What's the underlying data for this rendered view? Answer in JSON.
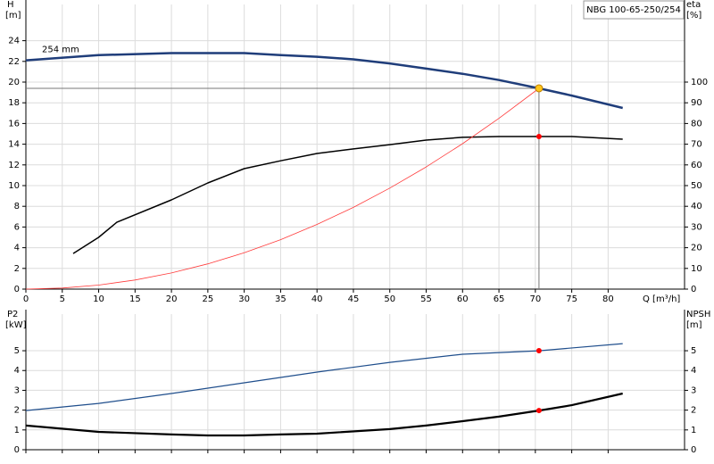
{
  "chart_data": [
    {
      "type": "line",
      "title": "NBG 100-65-250/254",
      "xlabel": "Q [m³/h]",
      "ylabel": "H",
      "yunit": "[m]",
      "y2label": "eta",
      "y2unit": "[%]",
      "xlim": [
        0,
        90.5
      ],
      "xticks": [
        0,
        5,
        10,
        15,
        20,
        25,
        30,
        35,
        40,
        45,
        50,
        55,
        60,
        65,
        70,
        75,
        80
      ],
      "ylim": [
        0,
        27.5
      ],
      "yticks": [
        0,
        2,
        4,
        6,
        8,
        10,
        12,
        14,
        16,
        18,
        20,
        22,
        24
      ],
      "y2lim": [
        0,
        137.5
      ],
      "y2ticks": [
        0,
        10,
        20,
        30,
        40,
        50,
        60,
        70,
        80,
        90,
        100
      ],
      "grid": true,
      "series": [
        {
          "name": "254 mm",
          "color": "#1f3d7a",
          "line_width": 2.5,
          "x": [
            0,
            10,
            20,
            25,
            30,
            35,
            40,
            45,
            50,
            55,
            60,
            65,
            70.5,
            75,
            82
          ],
          "values": [
            22.1,
            22.6,
            22.8,
            22.8,
            22.8,
            22.6,
            22.45,
            22.2,
            21.8,
            21.3,
            20.8,
            20.2,
            19.4,
            18.7,
            17.5
          ]
        },
        {
          "color": "#000000",
          "line_width": 1.5,
          "axis": "y2",
          "x": [
            6.5,
            10,
            12.5,
            20,
            25,
            30,
            35,
            40,
            45,
            50,
            55,
            60,
            65,
            70.5,
            75,
            82
          ],
          "values": [
            17.2,
            25,
            32.3,
            43.1,
            51.3,
            58.2,
            62,
            65.5,
            67.7,
            69.8,
            72,
            73.3,
            73.7,
            73.7,
            73.7,
            72.4
          ]
        },
        {
          "color": "#ff3b3b",
          "line_width": 0.8,
          "x": [
            0,
            5,
            10,
            15,
            20,
            25,
            30,
            35,
            40,
            45,
            50,
            55,
            60,
            65,
            70.5
          ],
          "values": [
            0,
            0.1,
            0.39,
            0.88,
            1.56,
            2.44,
            3.51,
            4.78,
            6.25,
            7.9,
            9.76,
            11.8,
            14.05,
            16.5,
            19.4
          ]
        }
      ],
      "markers": [
        {
          "x": 70.5,
          "y": 19.4,
          "color": "#ffc61a"
        },
        {
          "x": 70.5,
          "y": 73.7,
          "axis": "y2",
          "color": "#ff0000"
        }
      ]
    },
    {
      "type": "line",
      "ylabel": "P2",
      "yunit": "[kW]",
      "y2label": "NPSH",
      "y2unit": "[m]",
      "xlim": [
        0,
        90.5
      ],
      "xticks": [
        0,
        5,
        10,
        15,
        20,
        25,
        30,
        35,
        40,
        45,
        50,
        55,
        60,
        65,
        70,
        75,
        80
      ],
      "ylim": [
        0,
        6.85
      ],
      "yticks": [
        0,
        1,
        2,
        3,
        4,
        5
      ],
      "y2lim": [
        0,
        6.85
      ],
      "y2ticks": [
        0,
        1,
        2,
        3,
        4,
        5
      ],
      "grid": true,
      "series": [
        {
          "color": "#1f4e8c",
          "line_width": 1.2,
          "x": [
            0,
            10,
            20,
            30,
            40,
            50,
            60,
            70.5,
            82
          ],
          "values": [
            1.98,
            2.34,
            2.84,
            3.38,
            3.92,
            4.41,
            4.82,
            5.0,
            5.36
          ]
        },
        {
          "color": "#000000",
          "line_width": 2.2,
          "axis": "y2",
          "x": [
            0,
            10,
            20,
            25,
            30,
            35,
            40,
            50,
            55,
            60,
            65,
            70.5,
            75,
            82
          ],
          "values": [
            1.22,
            0.9,
            0.77,
            0.72,
            0.72,
            0.77,
            0.81,
            1.04,
            1.22,
            1.44,
            1.67,
            1.98,
            2.25,
            2.84
          ]
        }
      ],
      "markers": [
        {
          "x": 70.5,
          "y": 5.0,
          "color": "#ff0000"
        },
        {
          "x": 70.5,
          "y": 1.98,
          "axis": "y2",
          "color": "#ff0000"
        }
      ]
    }
  ]
}
